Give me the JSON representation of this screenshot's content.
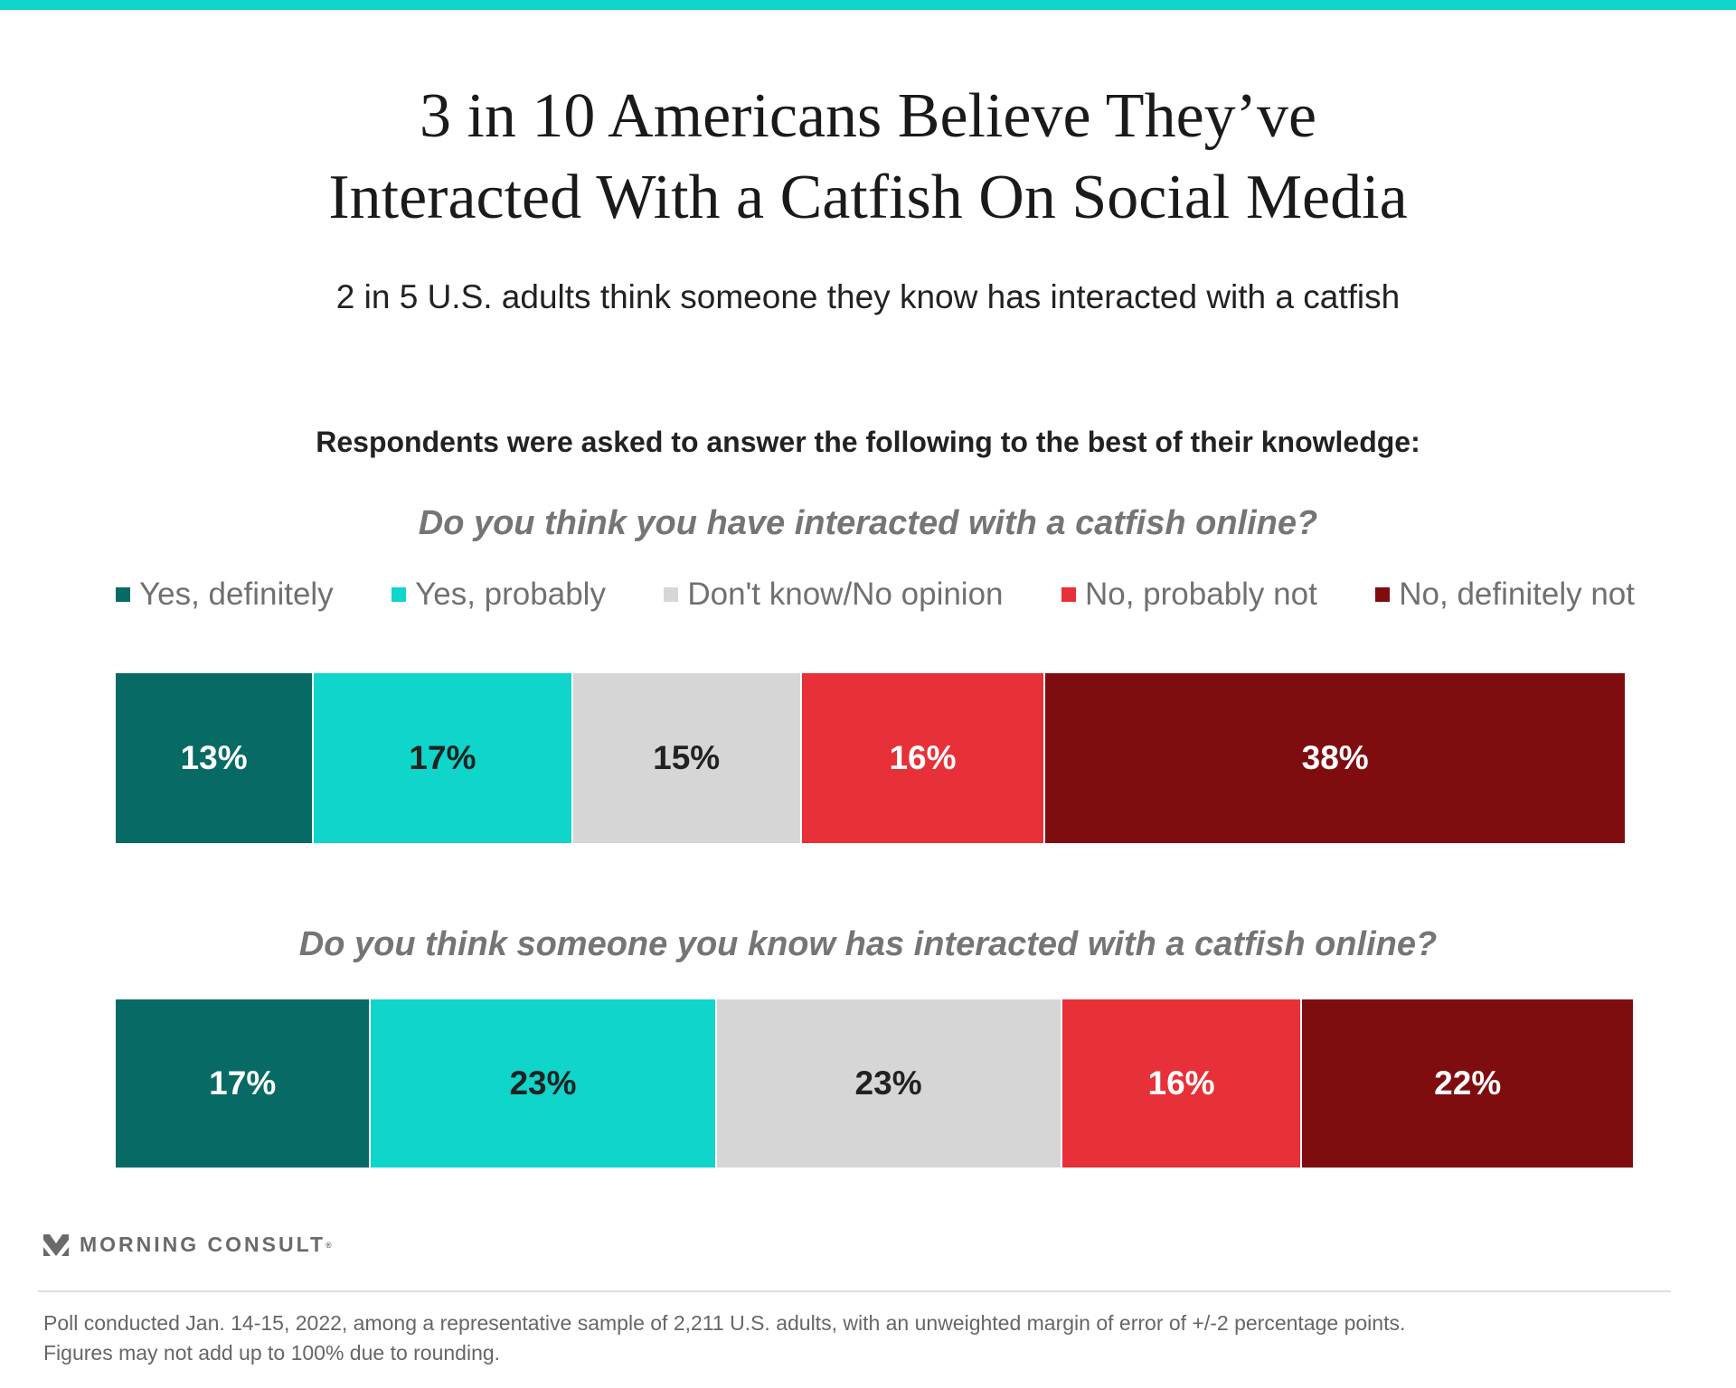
{
  "header": {
    "title_line1": "3 in 10 Americans Believe They’ve",
    "title_line2": "Interacted With a Catfish On Social Media",
    "subtitle": "2 in 5 U.S. adults think someone they know has interacted with a catfish",
    "prompt": "Respondents were asked to answer the following to the best of their knowledge:"
  },
  "chart_data": {
    "type": "bar",
    "stacked": true,
    "orientation": "horizontal",
    "legend_position": "top",
    "legend": [
      "Yes, definitely",
      "Yes, probably",
      "Don't know/No opinion",
      "No, probably not",
      "No, definitely not"
    ],
    "colors": [
      "#076a64",
      "#0fd5cb",
      "#d6d6d6",
      "#e83038",
      "#7f0d10"
    ],
    "label_colors": [
      "#ffffff",
      "#222222",
      "#222222",
      "#ffffff",
      "#ffffff"
    ],
    "categories": [
      "Do you think you have interacted with a catfish online?",
      "Do you think someone you know has interacted with a catfish online?"
    ],
    "rows": [
      {
        "values": [
          13,
          17,
          15,
          16,
          38
        ],
        "labels": [
          "13%",
          "17%",
          "15%",
          "16%",
          "38%"
        ]
      },
      {
        "values": [
          17,
          23,
          23,
          16,
          22
        ],
        "labels": [
          "17%",
          "23%",
          "23%",
          "16%",
          "22%"
        ]
      }
    ]
  },
  "brand": {
    "name": "MORNING CONSULT",
    "registered": "®"
  },
  "footer": {
    "line1": "Poll conducted Jan. 14-15, 2022, among a representative sample of 2,211 U.S. adults, with an unweighted margin of error of +/-2 percentage points.",
    "line2": "Figures may not add up to 100% due to rounding."
  }
}
